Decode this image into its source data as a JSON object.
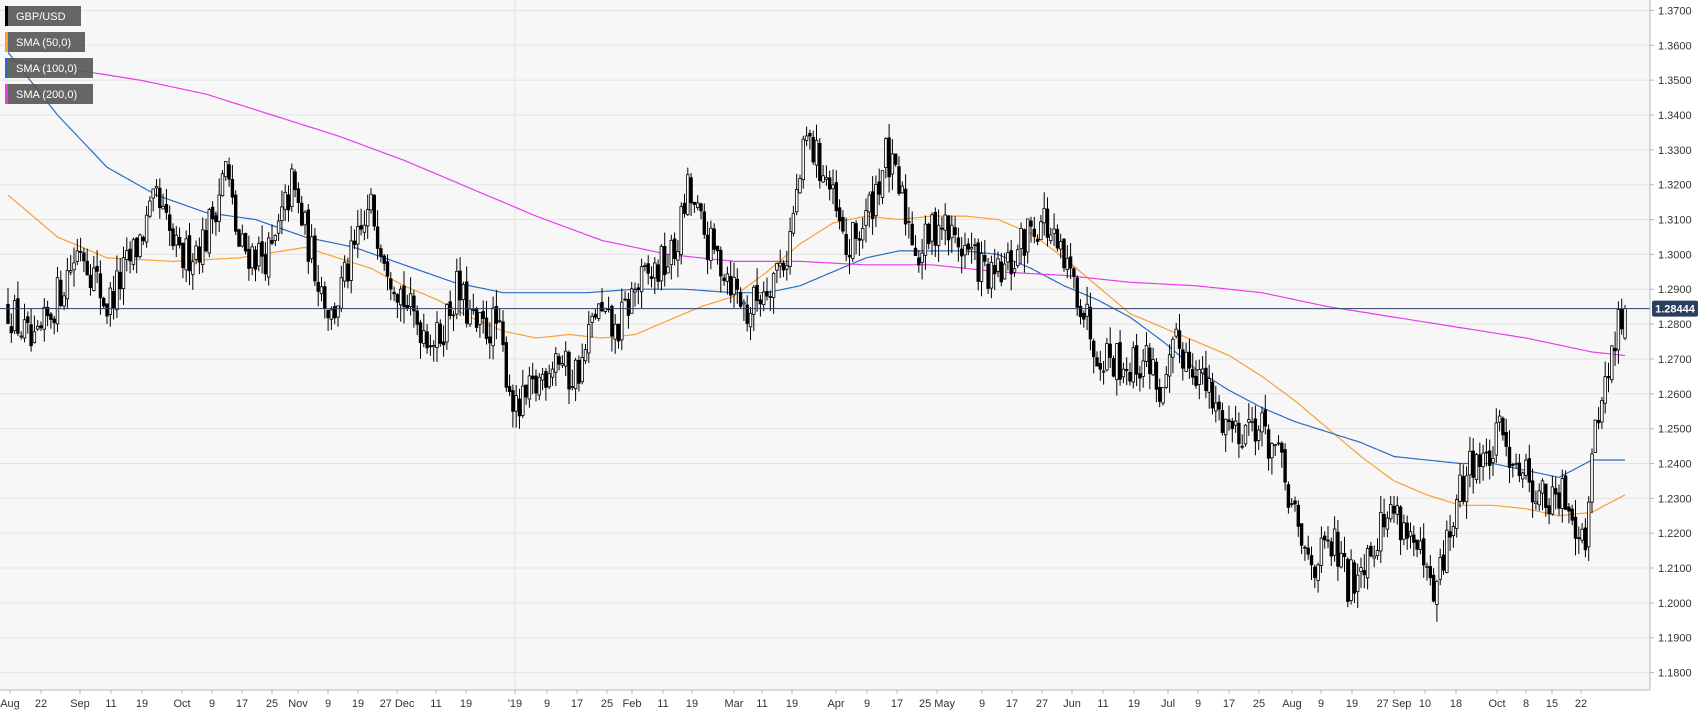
{
  "chart_data": {
    "type": "candlestick",
    "instrument": "GBP/USD",
    "legend": [
      {
        "label": "GBP/USD",
        "color": "#000000"
      },
      {
        "label": "SMA (50,0)",
        "color": "#f7a034"
      },
      {
        "label": "SMA (100,0)",
        "color": "#2b6cc4"
      },
      {
        "label": "SMA (200,0)",
        "color": "#e83ee8"
      }
    ],
    "ylim": [
      1.175,
      1.373
    ],
    "y_ticks": [
      "1.1800",
      "1.1900",
      "1.2000",
      "1.2100",
      "1.2200",
      "1.2300",
      "1.2400",
      "1.2500",
      "1.2600",
      "1.2700",
      "1.2800",
      "1.2900",
      "1.3000",
      "1.3100",
      "1.3200",
      "1.3300",
      "1.3400",
      "1.3500",
      "1.3600",
      "1.3700"
    ],
    "x_ticks": [
      "Aug",
      "22",
      "Sep",
      "11",
      "19",
      "Oct",
      "9",
      "17",
      "25",
      "Nov",
      "9",
      "19",
      "27 Dec",
      "11",
      "19",
      "'19",
      "9",
      "17",
      "25",
      "Feb",
      "11",
      "19",
      "Mar",
      "11",
      "19",
      "Apr",
      "9",
      "17",
      "25 May",
      "9",
      "17",
      "27",
      "Jun",
      "11",
      "19",
      "Jul",
      "9",
      "17",
      "25",
      "Aug",
      "9",
      "19",
      "27 Sep",
      "10",
      "18",
      "Oct",
      "8",
      "15",
      "22"
    ],
    "current_price": "1.28444",
    "current_price_value": 1.28444,
    "grid": true,
    "legend_position": "top-left",
    "price_anchors": [
      [
        0,
        1.285
      ],
      [
        8,
        1.272
      ],
      [
        15,
        1.288
      ],
      [
        22,
        1.303
      ],
      [
        30,
        1.285
      ],
      [
        38,
        1.3
      ],
      [
        45,
        1.315
      ],
      [
        52,
        1.298
      ],
      [
        60,
        1.305
      ],
      [
        66,
        1.325
      ],
      [
        70,
        1.302
      ],
      [
        76,
        1.3
      ],
      [
        80,
        1.3
      ],
      [
        86,
        1.32
      ],
      [
        92,
        1.3
      ],
      [
        98,
        1.282
      ],
      [
        104,
        1.298
      ],
      [
        110,
        1.313
      ],
      [
        116,
        1.296
      ],
      [
        122,
        1.283
      ],
      [
        130,
        1.275
      ],
      [
        136,
        1.29
      ],
      [
        142,
        1.278
      ],
      [
        148,
        1.28
      ],
      [
        154,
        1.254
      ],
      [
        160,
        1.262
      ],
      [
        166,
        1.272
      ],
      [
        170,
        1.265
      ],
      [
        174,
        1.268
      ],
      [
        178,
        1.284
      ],
      [
        184,
        1.277
      ],
      [
        190,
        1.29
      ],
      [
        196,
        1.295
      ],
      [
        202,
        1.3
      ],
      [
        206,
        1.318
      ],
      [
        212,
        1.303
      ],
      [
        218,
        1.295
      ],
      [
        224,
        1.283
      ],
      [
        230,
        1.292
      ],
      [
        236,
        1.3
      ],
      [
        242,
        1.333
      ],
      [
        248,
        1.322
      ],
      [
        254,
        1.3
      ],
      [
        260,
        1.31
      ],
      [
        266,
        1.328
      ],
      [
        270,
        1.318
      ],
      [
        276,
        1.3
      ],
      [
        282,
        1.31
      ],
      [
        286,
        1.305
      ],
      [
        292,
        1.3
      ],
      [
        298,
        1.292
      ],
      [
        304,
        1.297
      ],
      [
        310,
        1.308
      ],
      [
        314,
        1.31
      ],
      [
        318,
        1.3
      ],
      [
        324,
        1.29
      ],
      [
        330,
        1.273
      ],
      [
        336,
        1.27
      ],
      [
        340,
        1.268
      ],
      [
        346,
        1.27
      ],
      [
        350,
        1.258
      ],
      [
        354,
        1.274
      ],
      [
        360,
        1.268
      ],
      [
        366,
        1.255
      ],
      [
        372,
        1.25
      ],
      [
        378,
        1.252
      ],
      [
        384,
        1.244
      ],
      [
        388,
        1.231
      ],
      [
        392,
        1.215
      ],
      [
        396,
        1.212
      ],
      [
        402,
        1.216
      ],
      [
        406,
        1.205
      ],
      [
        410,
        1.212
      ],
      [
        416,
        1.222
      ],
      [
        420,
        1.227
      ],
      [
        424,
        1.221
      ],
      [
        428,
        1.212
      ],
      [
        432,
        1.2
      ],
      [
        436,
        1.217
      ],
      [
        440,
        1.231
      ],
      [
        444,
        1.242
      ],
      [
        448,
        1.24
      ],
      [
        452,
        1.248
      ],
      [
        456,
        1.243
      ],
      [
        460,
        1.237
      ],
      [
        464,
        1.231
      ],
      [
        468,
        1.228
      ],
      [
        472,
        1.231
      ],
      [
        476,
        1.222
      ],
      [
        478,
        1.22
      ],
      [
        480,
        1.24
      ],
      [
        483,
        1.262
      ],
      [
        485,
        1.265
      ],
      [
        488,
        1.28
      ],
      [
        490,
        1.28444
      ]
    ],
    "sma_anchors": {
      "sma50": [
        [
          0,
          1.317
        ],
        [
          15,
          1.305
        ],
        [
          30,
          1.299
        ],
        [
          50,
          1.298
        ],
        [
          70,
          1.299
        ],
        [
          90,
          1.302
        ],
        [
          110,
          1.296
        ],
        [
          120,
          1.291
        ],
        [
          130,
          1.287
        ],
        [
          140,
          1.282
        ],
        [
          150,
          1.278
        ],
        [
          160,
          1.276
        ],
        [
          170,
          1.277
        ],
        [
          180,
          1.276
        ],
        [
          190,
          1.277
        ],
        [
          200,
          1.281
        ],
        [
          210,
          1.285
        ],
        [
          220,
          1.288
        ],
        [
          230,
          1.295
        ],
        [
          240,
          1.303
        ],
        [
          250,
          1.309
        ],
        [
          260,
          1.311
        ],
        [
          270,
          1.31
        ],
        [
          280,
          1.311
        ],
        [
          290,
          1.311
        ],
        [
          300,
          1.31
        ],
        [
          310,
          1.306
        ],
        [
          320,
          1.299
        ],
        [
          330,
          1.291
        ],
        [
          340,
          1.283
        ],
        [
          350,
          1.279
        ],
        [
          360,
          1.275
        ],
        [
          370,
          1.271
        ],
        [
          380,
          1.265
        ],
        [
          390,
          1.258
        ],
        [
          400,
          1.25
        ],
        [
          410,
          1.242
        ],
        [
          420,
          1.235
        ],
        [
          430,
          1.231
        ],
        [
          440,
          1.228
        ],
        [
          450,
          1.228
        ],
        [
          460,
          1.227
        ],
        [
          470,
          1.225
        ],
        [
          480,
          1.226
        ],
        [
          490,
          1.231
        ]
      ],
      "sma100": [
        [
          0,
          1.358
        ],
        [
          15,
          1.34
        ],
        [
          30,
          1.325
        ],
        [
          45,
          1.317
        ],
        [
          60,
          1.312
        ],
        [
          75,
          1.31
        ],
        [
          90,
          1.305
        ],
        [
          105,
          1.302
        ],
        [
          120,
          1.297
        ],
        [
          135,
          1.292
        ],
        [
          150,
          1.289
        ],
        [
          160,
          1.289
        ],
        [
          175,
          1.289
        ],
        [
          190,
          1.29
        ],
        [
          205,
          1.29
        ],
        [
          220,
          1.289
        ],
        [
          230,
          1.289
        ],
        [
          240,
          1.291
        ],
        [
          250,
          1.295
        ],
        [
          260,
          1.299
        ],
        [
          270,
          1.301
        ],
        [
          280,
          1.301
        ],
        [
          290,
          1.301
        ],
        [
          300,
          1.3
        ],
        [
          310,
          1.296
        ],
        [
          320,
          1.291
        ],
        [
          330,
          1.287
        ],
        [
          340,
          1.282
        ],
        [
          350,
          1.275
        ],
        [
          360,
          1.267
        ],
        [
          370,
          1.261
        ],
        [
          380,
          1.256
        ],
        [
          390,
          1.252
        ],
        [
          400,
          1.249
        ],
        [
          410,
          1.246
        ],
        [
          420,
          1.242
        ],
        [
          430,
          1.241
        ],
        [
          440,
          1.24
        ],
        [
          450,
          1.24
        ],
        [
          460,
          1.238
        ],
        [
          470,
          1.236
        ],
        [
          480,
          1.241
        ],
        [
          490,
          1.241
        ]
      ],
      "sma200": [
        [
          0,
          1.356
        ],
        [
          20,
          1.353
        ],
        [
          40,
          1.35
        ],
        [
          60,
          1.346
        ],
        [
          80,
          1.34
        ],
        [
          100,
          1.334
        ],
        [
          120,
          1.327
        ],
        [
          140,
          1.319
        ],
        [
          160,
          1.311
        ],
        [
          180,
          1.304
        ],
        [
          200,
          1.3
        ],
        [
          220,
          1.298
        ],
        [
          240,
          1.298
        ],
        [
          260,
          1.297
        ],
        [
          280,
          1.297
        ],
        [
          300,
          1.295
        ],
        [
          320,
          1.294
        ],
        [
          340,
          1.292
        ],
        [
          360,
          1.291
        ],
        [
          380,
          1.289
        ],
        [
          400,
          1.285
        ],
        [
          420,
          1.282
        ],
        [
          440,
          1.279
        ],
        [
          460,
          1.276
        ],
        [
          480,
          1.272
        ],
        [
          490,
          1.271
        ]
      ]
    }
  }
}
